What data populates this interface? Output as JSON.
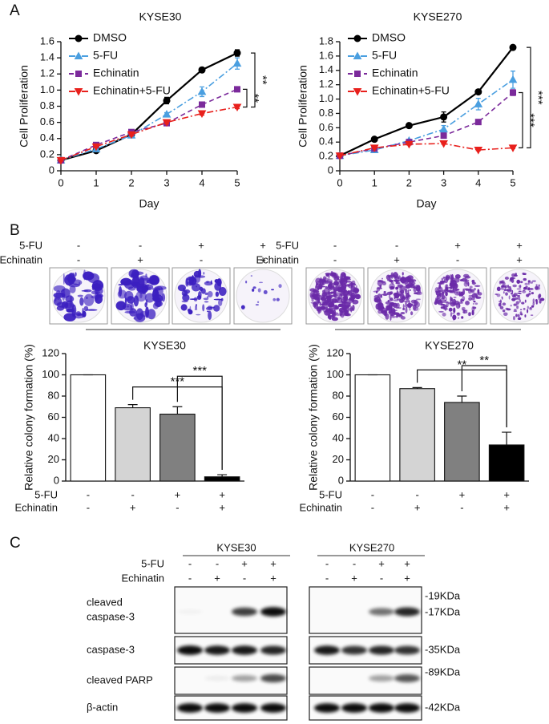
{
  "panels": [
    "A",
    "B",
    "C"
  ],
  "chart_data": [
    {
      "type": "line",
      "title": "KYSE30",
      "x_label": "Day",
      "y_label": "Cell Proliferation",
      "x": [
        0,
        1,
        2,
        3,
        4,
        5
      ],
      "xlim": [
        0,
        5
      ],
      "xticks": [
        0,
        1,
        2,
        3,
        4,
        5
      ],
      "ylim": [
        0,
        1.6
      ],
      "yticks": [
        0,
        0.2,
        0.4,
        0.6,
        0.8,
        {
          "value": 1,
          "label": "1.0"
        },
        1.2,
        1.4,
        1.6
      ],
      "legend": "upper left",
      "series": [
        {
          "name": "DMSO",
          "color": "#000000",
          "marker": "circle",
          "dash": "solid",
          "values": [
            0.13,
            0.25,
            0.45,
            0.87,
            1.25,
            1.46
          ],
          "errors": [
            0.01,
            0.01,
            0.02,
            0.04,
            0.03,
            0.04
          ]
        },
        {
          "name": "5-FU",
          "color": "#4a9fe0",
          "marker": "triangle-up",
          "dash": "dashdot",
          "values": [
            0.13,
            0.27,
            0.44,
            0.7,
            0.98,
            1.33
          ],
          "errors": [
            0.01,
            0.01,
            0.02,
            0.02,
            0.06,
            0.07
          ]
        },
        {
          "name": "Echinatin",
          "color": "#7b2a9b",
          "marker": "square",
          "dash": "dashed",
          "values": [
            0.13,
            0.32,
            0.48,
            0.59,
            0.82,
            1.01
          ],
          "errors": [
            0.01,
            0.01,
            0.03,
            0.03,
            0.03,
            0.03
          ]
        },
        {
          "name": "Echinatin+5-FU",
          "color": "#e8201c",
          "marker": "triangle-down",
          "dash": "dashdot",
          "values": [
            0.13,
            0.3,
            0.45,
            0.6,
            0.71,
            0.79
          ],
          "errors": [
            0.01,
            0.01,
            0.02,
            0.02,
            0.02,
            0.02
          ]
        }
      ],
      "annotations": [
        {
          "text": "**",
          "between": [
            0,
            3
          ]
        },
        {
          "text": "**",
          "between": [
            2,
            3
          ]
        }
      ]
    },
    {
      "type": "line",
      "title": "KYSE270",
      "x_label": "Day",
      "y_label": "Cell Proliferation",
      "x": [
        0,
        1,
        2,
        3,
        4,
        5
      ],
      "xlim": [
        0,
        5
      ],
      "xticks": [
        0,
        1,
        2,
        3,
        4,
        5
      ],
      "ylim": [
        0,
        1.8
      ],
      "yticks": [
        0,
        0.2,
        0.4,
        0.6,
        0.8,
        {
          "value": 1,
          "label": "1.0"
        },
        1.2,
        1.4,
        1.6,
        1.8
      ],
      "legend": "upper left",
      "series": [
        {
          "name": "DMSO",
          "color": "#000000",
          "marker": "circle",
          "dash": "solid",
          "values": [
            0.21,
            0.44,
            0.63,
            0.75,
            1.1,
            1.72
          ],
          "errors": [
            0.01,
            0.01,
            0.01,
            0.07,
            0.01,
            0.03
          ]
        },
        {
          "name": "5-FU",
          "color": "#4a9fe0",
          "marker": "triangle-up",
          "dash": "dashdot",
          "values": [
            0.21,
            0.29,
            0.42,
            0.58,
            0.93,
            1.27
          ],
          "errors": [
            0.01,
            0.01,
            0.02,
            0.05,
            0.08,
            0.12
          ]
        },
        {
          "name": "Echinatin",
          "color": "#7b2a9b",
          "marker": "square",
          "dash": "dashed",
          "values": [
            0.21,
            0.31,
            0.4,
            0.49,
            0.68,
            1.09
          ],
          "errors": [
            0.01,
            0.01,
            0.01,
            0.02,
            0.02,
            0.04
          ]
        },
        {
          "name": "Echinatin+5-FU",
          "color": "#e8201c",
          "marker": "triangle-down",
          "dash": "dashdot",
          "values": [
            0.21,
            0.32,
            0.37,
            0.38,
            0.29,
            0.32
          ],
          "errors": [
            0.01,
            0.01,
            0.01,
            0.01,
            0.01,
            0.01
          ]
        }
      ],
      "annotations": [
        {
          "text": "***",
          "between": [
            0,
            3
          ]
        },
        {
          "text": "***",
          "between": [
            2,
            3
          ]
        }
      ]
    },
    {
      "type": "bar",
      "title": "KYSE30",
      "y_label": "Relative colony formation (%)",
      "categories": [
        null,
        null,
        null,
        null
      ],
      "values": [
        100,
        69,
        63,
        4
      ],
      "errors": [
        0,
        3,
        7,
        2
      ],
      "colors": [
        "#ffffff",
        "#d4d4d4",
        "#808080",
        "#000000"
      ],
      "ylim": [
        0,
        120
      ],
      "yticks": [
        0,
        20,
        40,
        60,
        80,
        100,
        120
      ],
      "conditions": [
        {
          "name": "5-FU",
          "marks": [
            "-",
            "-",
            "+",
            "+"
          ]
        },
        {
          "name": "Echinatin",
          "marks": [
            "-",
            "+",
            "-",
            "+"
          ]
        }
      ],
      "annotations": [
        {
          "text": "***",
          "between": [
            1,
            3
          ]
        },
        {
          "text": "***",
          "between": [
            2,
            3
          ]
        }
      ]
    },
    {
      "type": "bar",
      "title": "KYSE270",
      "y_label": "Relative colony formation (%)",
      "categories": [
        null,
        null,
        null,
        null
      ],
      "values": [
        100,
        87,
        74,
        34
      ],
      "errors": [
        0,
        1,
        6,
        12
      ],
      "colors": [
        "#ffffff",
        "#d4d4d4",
        "#808080",
        "#000000"
      ],
      "ylim": [
        0,
        120
      ],
      "yticks": [
        0,
        20,
        40,
        60,
        80,
        100,
        120
      ],
      "conditions": [
        {
          "name": "5-FU",
          "marks": [
            "-",
            "-",
            "+",
            "+"
          ]
        },
        {
          "name": "Echinatin",
          "marks": [
            "-",
            "+",
            "-",
            "+"
          ]
        }
      ],
      "annotations": [
        {
          "text": "**",
          "between": [
            1,
            3
          ]
        },
        {
          "text": "**",
          "between": [
            2,
            3
          ]
        }
      ]
    }
  ],
  "colony_assay": {
    "conditions": [
      {
        "name": "5-FU",
        "marks": [
          "-",
          "-",
          "+",
          "+"
        ]
      },
      {
        "name": "Echinatin",
        "marks": [
          "-",
          "+",
          "-",
          "+"
        ]
      }
    ]
  },
  "western_blot": {
    "groups": [
      "KYSE30",
      "KYSE270"
    ],
    "conditions": [
      {
        "name": "5-FU",
        "marks": [
          "-",
          "-",
          "+",
          "+"
        ]
      },
      {
        "name": "Echinatin",
        "marks": [
          "-",
          "+",
          "-",
          "+"
        ]
      }
    ],
    "rows": [
      {
        "label": [
          "cleaved",
          "caspase-3"
        ]
      },
      {
        "label": [
          "caspase-3"
        ]
      },
      {
        "label": [
          "cleaved PARP"
        ]
      },
      {
        "label": [
          "β-actin"
        ]
      }
    ],
    "sizes": [
      "-19KDa",
      "-17KDa",
      "-35KDa",
      "-89KDa",
      "-42KDa"
    ]
  }
}
